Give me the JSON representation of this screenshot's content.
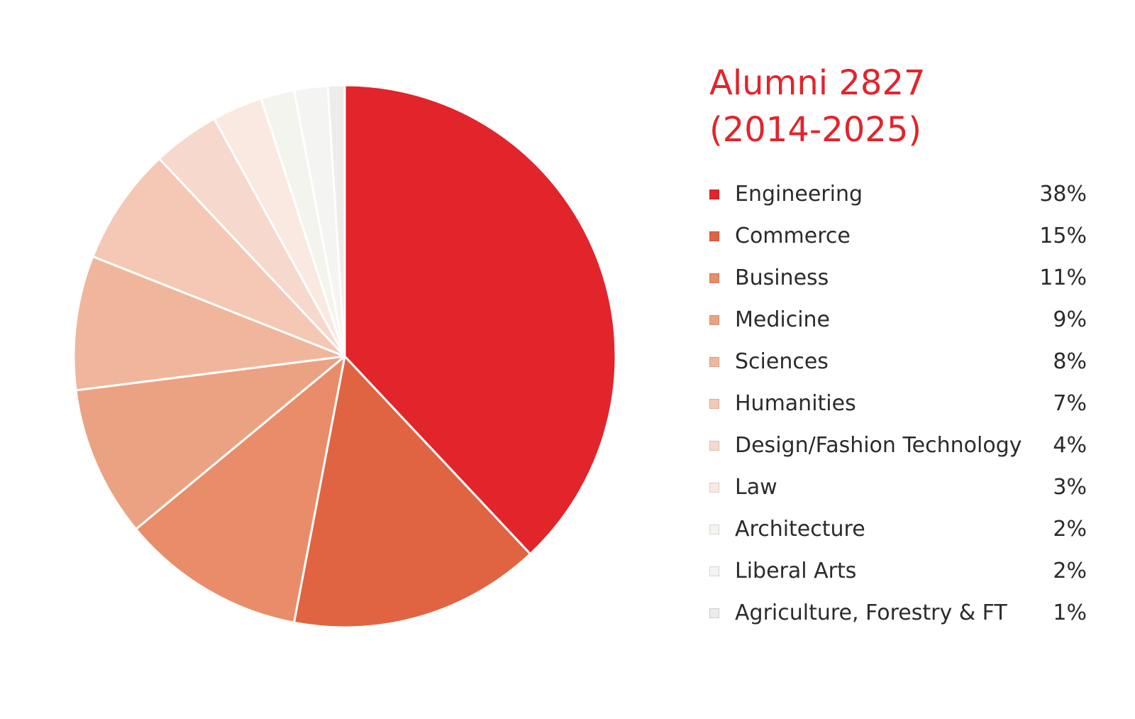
{
  "chart_data": {
    "type": "pie",
    "title": "Alumni 2827",
    "subtitle": "(2014-2025)",
    "legend_placement": "right",
    "slices": [
      {
        "label": "Engineering",
        "value": 38,
        "display": "38%",
        "color": "#e2242b"
      },
      {
        "label": "Commerce",
        "value": 15,
        "display": "15%",
        "color": "#e06441"
      },
      {
        "label": "Business",
        "value": 11,
        "display": "11%",
        "color": "#e88c69"
      },
      {
        "label": "Medicine",
        "value": 9,
        "display": "9%",
        "color": "#eba283"
      },
      {
        "label": "Sciences",
        "value": 8,
        "display": "8%",
        "color": "#efb69c"
      },
      {
        "label": "Humanities",
        "value": 7,
        "display": "7%",
        "color": "#f4c8b4"
      },
      {
        "label": "Design/Fashion Technology",
        "value": 4,
        "display": "4%",
        "color": "#f6d9cc"
      },
      {
        "label": "Law",
        "value": 3,
        "display": "3%",
        "color": "#f9e9e1"
      },
      {
        "label": "Architecture",
        "value": 2,
        "display": "2%",
        "color": "#f4f4ee"
      },
      {
        "label": "Liberal Arts",
        "value": 2,
        "display": "2%",
        "color": "#f4f4f2"
      },
      {
        "label": "Agriculture, Forestry & FT",
        "value": 1,
        "display": "1%",
        "color": "#ececeb"
      }
    ]
  }
}
